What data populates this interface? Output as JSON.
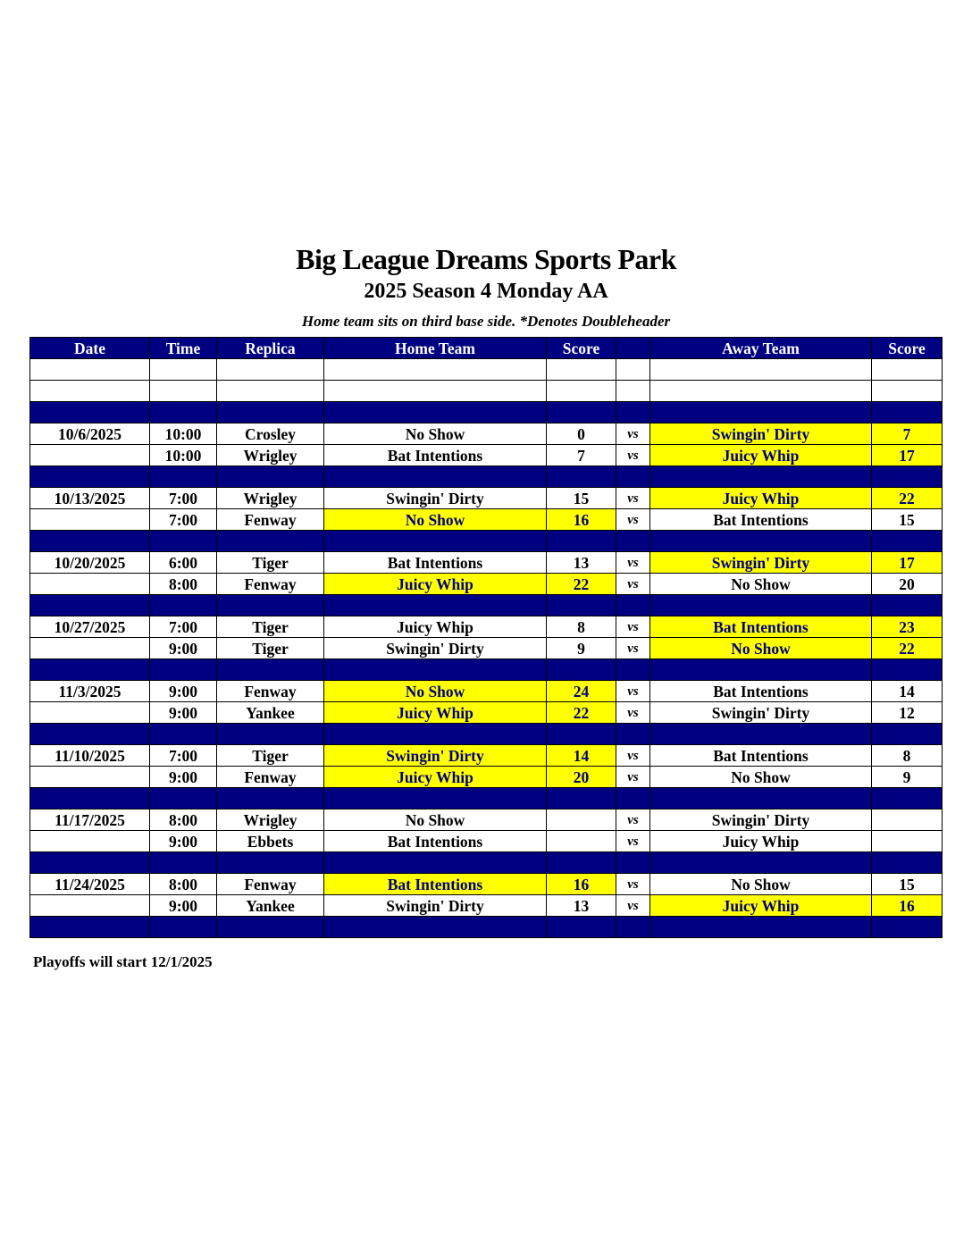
{
  "title": "Big League Dreams Sports Park",
  "subtitle": "2025 Season 4 Monday AA",
  "note": "Home team sits on third base side.  *Denotes Doubleheader",
  "columns": [
    "Date",
    "Time",
    "Replica",
    "Home Team",
    "Score",
    "",
    "Away Team",
    "Score"
  ],
  "vs_label": "vs",
  "colors": {
    "header_bg": "#000080",
    "highlight": "#ffff00",
    "highlight_text": "#000080"
  },
  "weeks": [
    {
      "games": [
        {
          "date": "10/6/2025",
          "time": "10:00",
          "replica": "Crosley",
          "home": "No Show",
          "home_score": "0",
          "away": "Swingin' Dirty",
          "away_score": "7",
          "winner": "away"
        },
        {
          "date": "",
          "time": "10:00",
          "replica": "Wrigley",
          "home": "Bat Intentions",
          "home_score": "7",
          "away": "Juicy Whip",
          "away_score": "17",
          "winner": "away"
        }
      ]
    },
    {
      "games": [
        {
          "date": "10/13/2025",
          "time": "7:00",
          "replica": "Wrigley",
          "home": "Swingin' Dirty",
          "home_score": "15",
          "away": "Juicy Whip",
          "away_score": "22",
          "winner": "away"
        },
        {
          "date": "",
          "time": "7:00",
          "replica": "Fenway",
          "home": "No Show",
          "home_score": "16",
          "away": "Bat Intentions",
          "away_score": "15",
          "winner": "home"
        }
      ]
    },
    {
      "games": [
        {
          "date": "10/20/2025",
          "time": "6:00",
          "replica": "Tiger",
          "home": "Bat Intentions",
          "home_score": "13",
          "away": "Swingin' Dirty",
          "away_score": "17",
          "winner": "away"
        },
        {
          "date": "",
          "time": "8:00",
          "replica": "Fenway",
          "home": "Juicy Whip",
          "home_score": "22",
          "away": "No Show",
          "away_score": "20",
          "winner": "home"
        }
      ]
    },
    {
      "games": [
        {
          "date": "10/27/2025",
          "time": "7:00",
          "replica": "Tiger",
          "home": "Juicy Whip",
          "home_score": "8",
          "away": "Bat Intentions",
          "away_score": "23",
          "winner": "away"
        },
        {
          "date": "",
          "time": "9:00",
          "replica": "Tiger",
          "home": "Swingin' Dirty",
          "home_score": "9",
          "away": "No Show",
          "away_score": "22",
          "winner": "away"
        }
      ]
    },
    {
      "games": [
        {
          "date": "11/3/2025",
          "time": "9:00",
          "replica": "Fenway",
          "home": "No Show",
          "home_score": "24",
          "away": "Bat Intentions",
          "away_score": "14",
          "winner": "home"
        },
        {
          "date": "",
          "time": "9:00",
          "replica": "Yankee",
          "home": "Juicy Whip",
          "home_score": "22",
          "away": "Swingin' Dirty",
          "away_score": "12",
          "winner": "home"
        }
      ]
    },
    {
      "games": [
        {
          "date": "11/10/2025",
          "time": "7:00",
          "replica": "Tiger",
          "home": "Swingin' Dirty",
          "home_score": "14",
          "away": "Bat Intentions",
          "away_score": "8",
          "winner": "home"
        },
        {
          "date": "",
          "time": "9:00",
          "replica": "Fenway",
          "home": "Juicy Whip",
          "home_score": "20",
          "away": "No Show",
          "away_score": "9",
          "winner": "home"
        }
      ]
    },
    {
      "games": [
        {
          "date": "11/17/2025",
          "time": "8:00",
          "replica": "Wrigley",
          "home": "No Show",
          "home_score": "",
          "away": "Swingin' Dirty",
          "away_score": "",
          "winner": ""
        },
        {
          "date": "",
          "time": "9:00",
          "replica": "Ebbets",
          "home": "Bat Intentions",
          "home_score": "",
          "away": "Juicy Whip",
          "away_score": "",
          "winner": ""
        }
      ]
    },
    {
      "games": [
        {
          "date": "11/24/2025",
          "time": "8:00",
          "replica": "Fenway",
          "home": "Bat Intentions",
          "home_score": "16",
          "away": "No Show",
          "away_score": "15",
          "winner": "home"
        },
        {
          "date": "",
          "time": "9:00",
          "replica": "Yankee",
          "home": "Swingin' Dirty",
          "home_score": "13",
          "away": "Juicy Whip",
          "away_score": "16",
          "winner": "away"
        }
      ]
    }
  ],
  "footer": "Playoffs will start 12/1/2025"
}
